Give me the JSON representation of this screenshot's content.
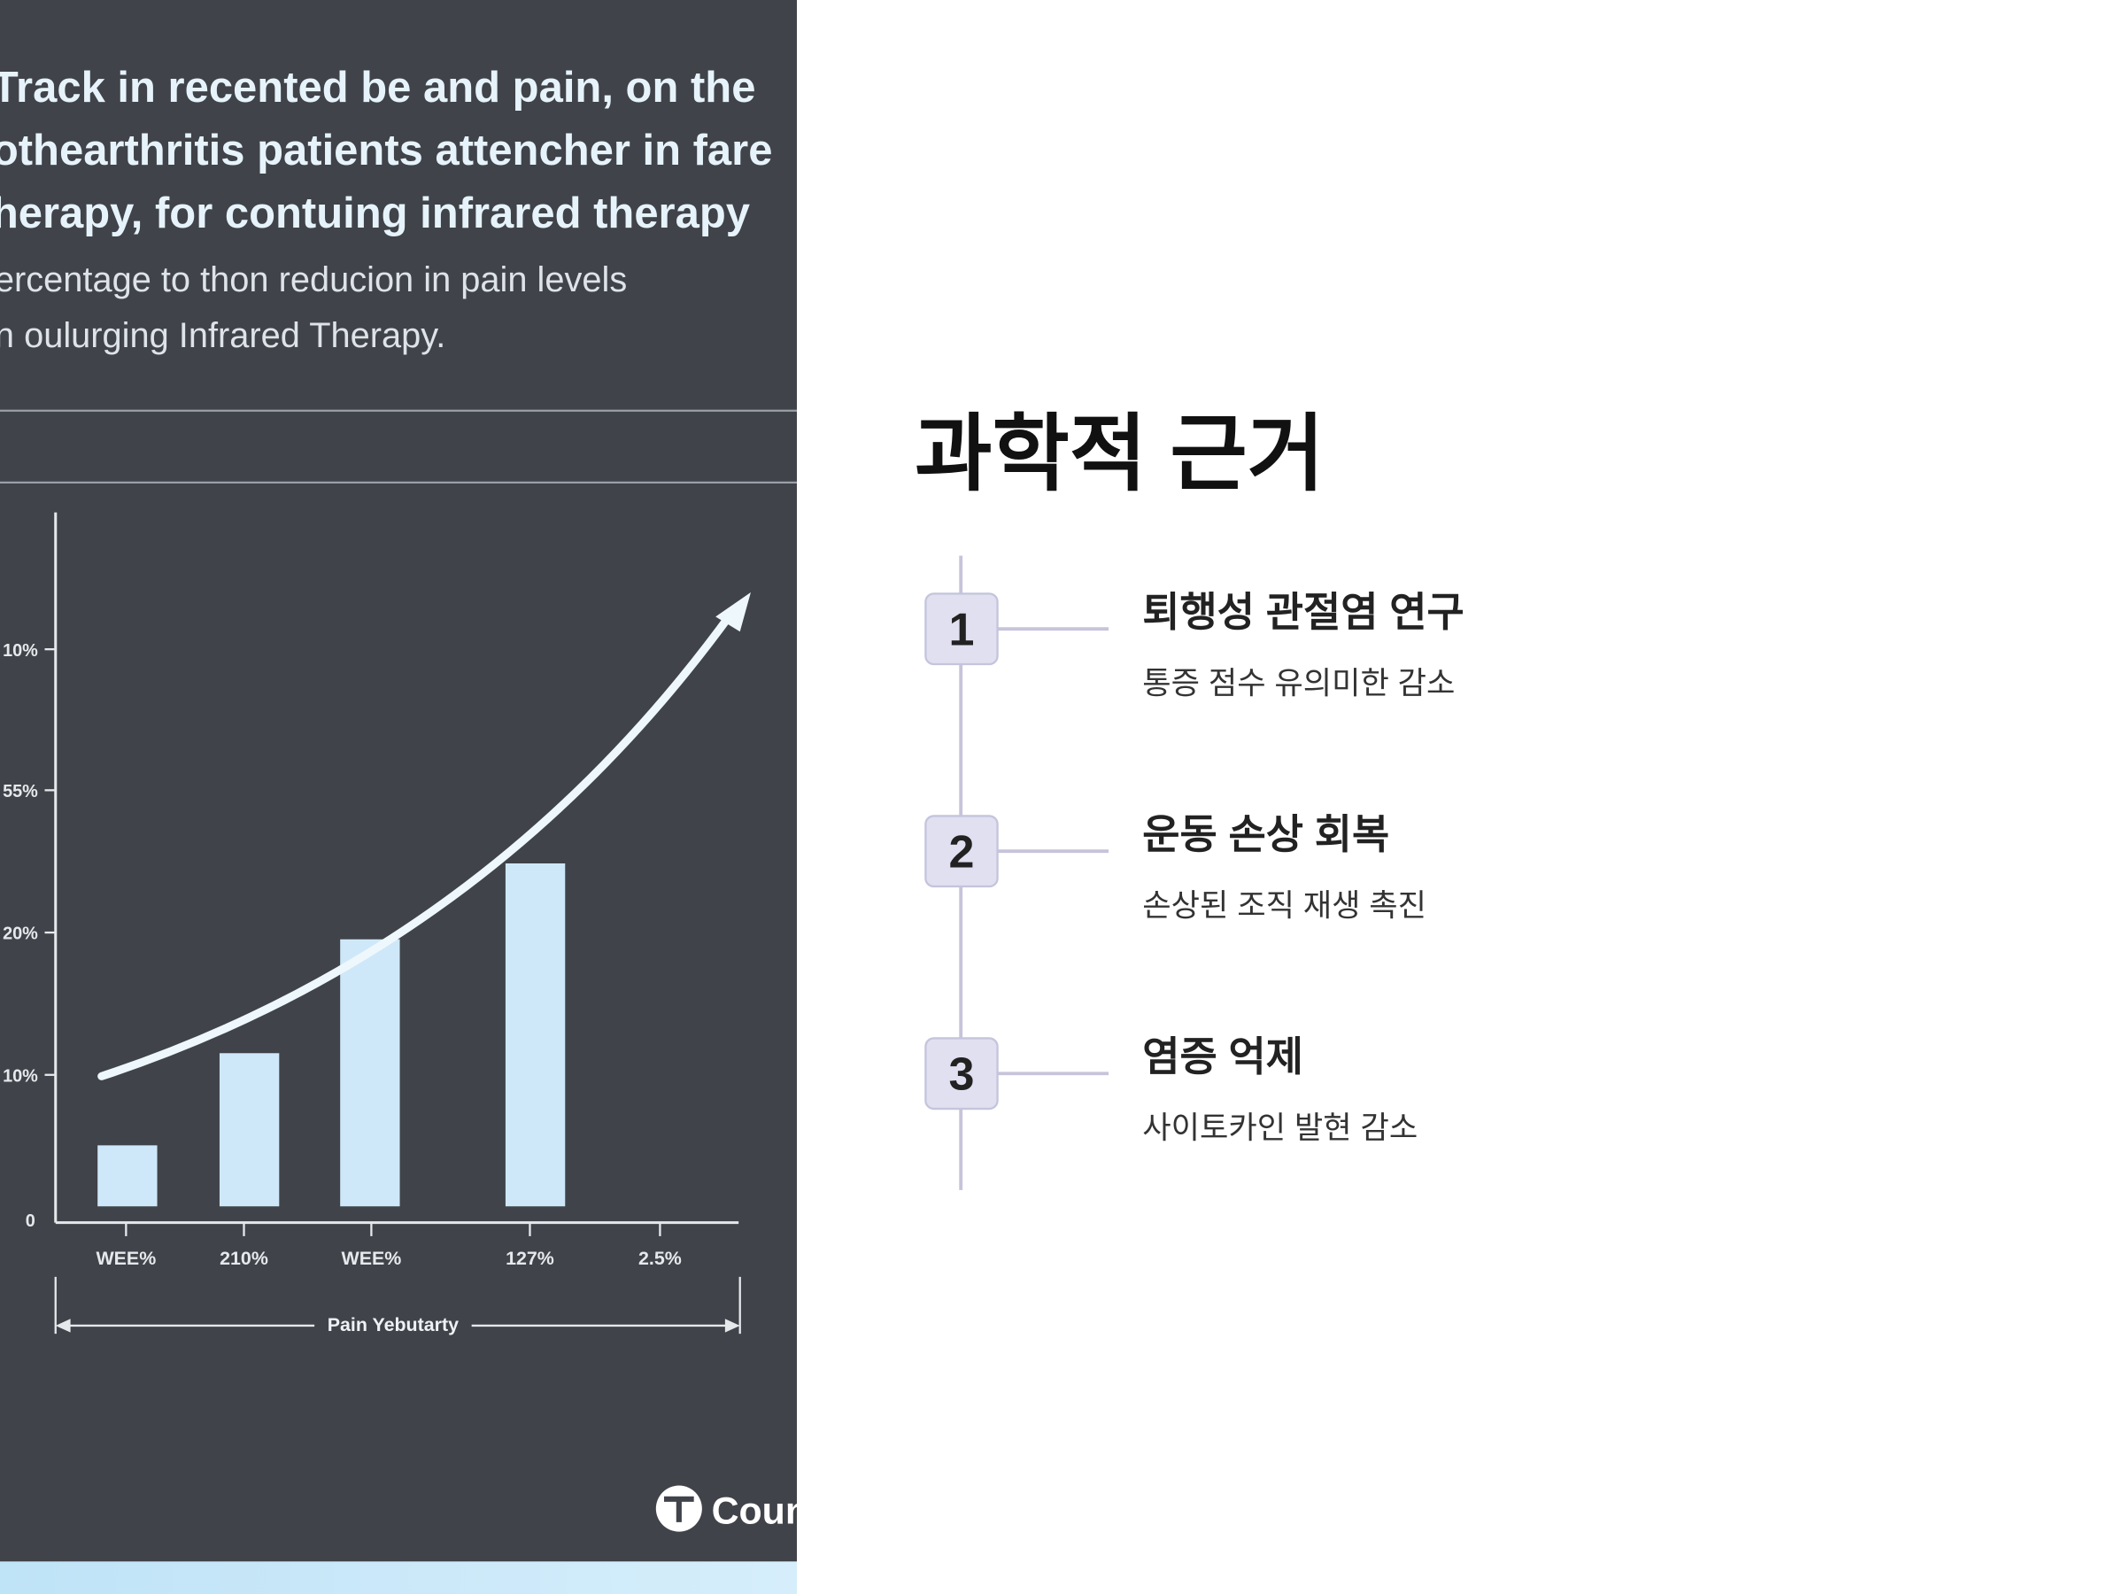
{
  "figure": {
    "title_lines": [
      "Track in recented be and pain, on the",
      "othearthritis patients attencher in fare",
      "herapy, for contuing infrared therapy"
    ],
    "subtitle_lines": [
      "ercentage to thon reducion in pain levels",
      "n oulurging Infrared Therapy."
    ],
    "y_labels": [
      "10%",
      "55%",
      "20%",
      "10%",
      "0"
    ],
    "x_labels": [
      "WEE%",
      "210%",
      "WEE%",
      "127%",
      "2.5%"
    ],
    "axis_label": "Pain Yebutarty",
    "logo": "Coun"
  },
  "slide": {
    "title": "과학적 근거",
    "items": [
      {
        "number": "1",
        "heading": "퇴행성 관절염 연구",
        "description": "통증 점수 유의미한 감소"
      },
      {
        "number": "2",
        "heading": "운동 손상 회복",
        "description": "손상된 조직 재생 촉진"
      },
      {
        "number": "3",
        "heading": "염증 억제",
        "description": "사이토카인 발현 감소"
      }
    ]
  }
}
